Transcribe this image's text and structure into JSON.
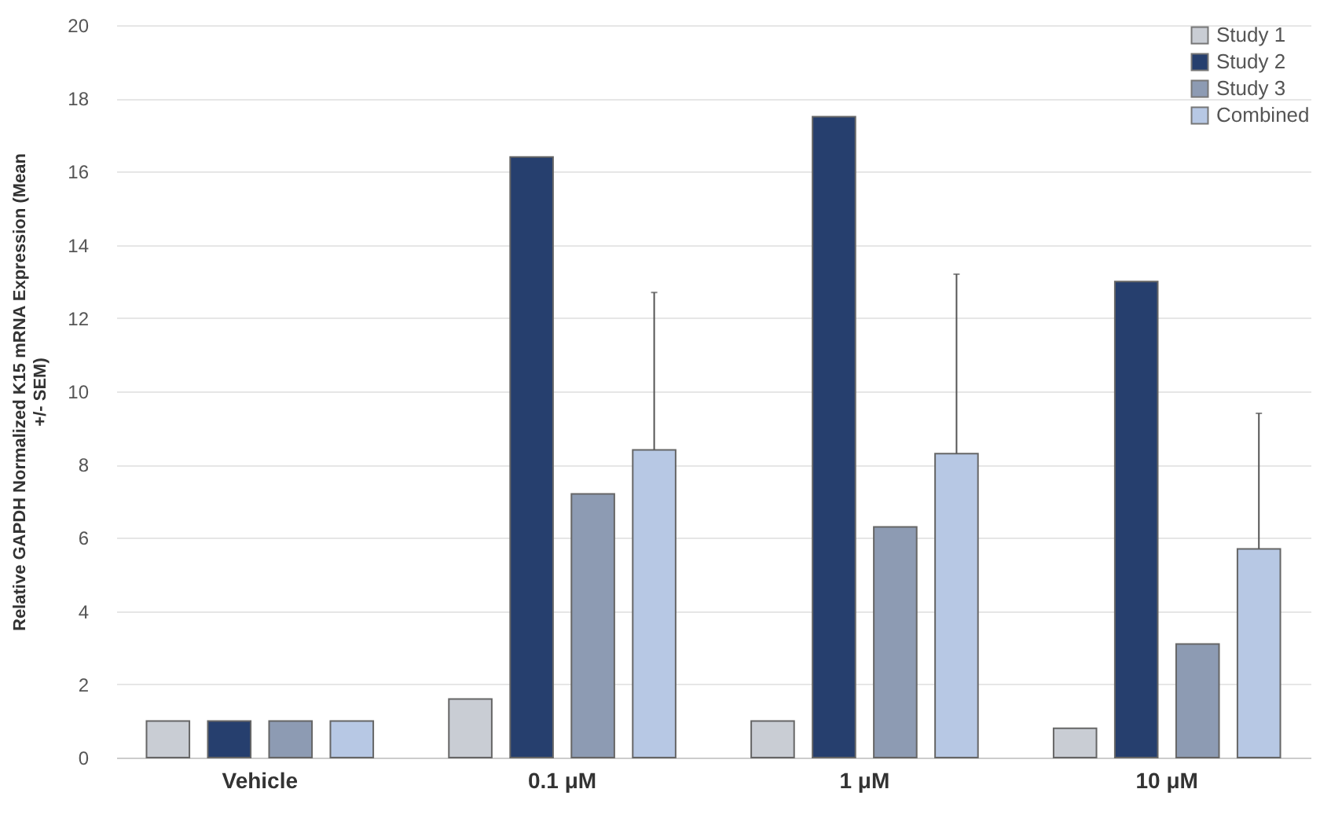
{
  "chart_data": {
    "type": "bar",
    "ylabel": "Relative GAPDH Normalized K15 mRNA Expression (Mean +/- SEM)",
    "categories": [
      "Vehicle",
      "0.1 μM",
      "1 μM",
      "10 μM"
    ],
    "series": [
      {
        "name": "Study 1",
        "color": "#c9cdd4",
        "values": [
          1.0,
          1.6,
          1.0,
          0.8
        ]
      },
      {
        "name": "Study 2",
        "color": "#263f6e",
        "values": [
          1.0,
          16.4,
          17.5,
          13.0
        ]
      },
      {
        "name": "Study 3",
        "color": "#8d9bb3",
        "values": [
          1.0,
          7.2,
          6.3,
          3.1
        ]
      },
      {
        "name": "Combined",
        "color": "#b7c8e4",
        "values": [
          1.0,
          8.4,
          8.3,
          5.7
        ],
        "errors": [
          null,
          [
            8.4,
            12.7
          ],
          [
            8.3,
            13.2
          ],
          [
            5.7,
            9.4
          ]
        ]
      }
    ],
    "ylim": [
      0,
      20
    ],
    "yticks": [
      0,
      2,
      4,
      6,
      8,
      10,
      12,
      14,
      16,
      18,
      20
    ],
    "grid": "y",
    "legend": "top right"
  }
}
